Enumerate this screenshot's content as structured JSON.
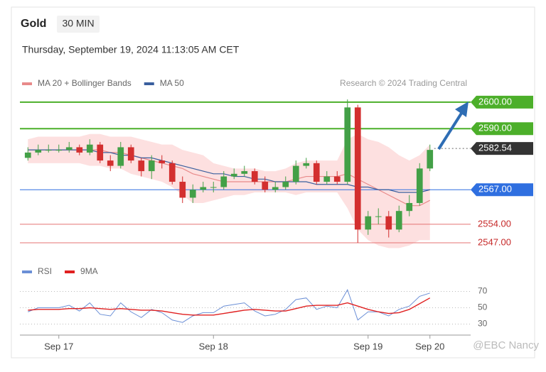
{
  "chart_data": {
    "type": "candlestick",
    "title": "Gold",
    "interval": "30 MIN",
    "subtitle": "Thursday, September 19, 2024 11:13:05 AM CET",
    "source": "Research © 2024 Trading Central",
    "watermark": "@EBC  Nancy",
    "categories": [
      null,
      null,
      null,
      "Sep 17",
      null,
      null,
      null,
      null,
      null,
      null,
      null,
      null,
      null,
      null,
      null,
      null,
      null,
      null,
      "Sep 18",
      null,
      null,
      null,
      null,
      null,
      null,
      null,
      null,
      null,
      null,
      null,
      null,
      null,
      null,
      "Sep 19",
      null,
      null,
      null,
      null,
      null,
      "Sep 20"
    ],
    "open": [
      2579,
      2581,
      2582,
      2582,
      2582,
      2583,
      2581,
      2584,
      2578,
      2576,
      2583,
      2578,
      2574,
      2578,
      2577,
      2570,
      2564,
      2567,
      2568,
      2568,
      2572,
      2573,
      2574,
      2570,
      2567,
      2568,
      2570,
      2576,
      2577,
      2570,
      2572,
      2570,
      2598,
      2552,
      2557,
      2557,
      2552,
      2559,
      2562,
      2575
    ],
    "high": [
      2583,
      2584,
      2584,
      2584,
      2585,
      2584,
      2586,
      2585,
      2580,
      2585,
      2584,
      2579,
      2580,
      2580,
      2578,
      2572,
      2569,
      2570,
      2570,
      2574,
      2575,
      2576,
      2575,
      2572,
      2570,
      2572,
      2578,
      2579,
      2578,
      2574,
      2574,
      2601,
      2599,
      2559,
      2560,
      2559,
      2561,
      2565,
      2577,
      2584
    ],
    "low": [
      2578,
      2580,
      2581,
      2581,
      2581,
      2580,
      2580,
      2577,
      2574,
      2575,
      2577,
      2572,
      2571,
      2575,
      2569,
      2562,
      2562,
      2566,
      2566,
      2567,
      2571,
      2572,
      2569,
      2566,
      2566,
      2567,
      2569,
      2575,
      2569,
      2569,
      2569,
      2569,
      2547,
      2550,
      2554,
      2549,
      2551,
      2557,
      2561,
      2574
    ],
    "close": [
      2581,
      2582,
      2582,
      2582,
      2583,
      2581,
      2584,
      2578,
      2576,
      2583,
      2578,
      2574,
      2578,
      2577,
      2570,
      2564,
      2567,
      2568,
      2568,
      2572,
      2573,
      2574,
      2570,
      2567,
      2568,
      2570,
      2576,
      2577,
      2570,
      2572,
      2570,
      2598,
      2552,
      2557,
      2557,
      2552,
      2559,
      2562,
      2575,
      2582
    ],
    "up_color": "#43a047",
    "down_color": "#d32f2f",
    "series": [
      {
        "name": "MA 20 + Bollinger Bands",
        "color": "#e88a8a",
        "values": [
          2582,
          2582,
          2582,
          2582,
          2582,
          2582,
          2582,
          2582,
          2581,
          2581,
          2580,
          2579,
          2578,
          2577,
          2576,
          2575,
          2573,
          2572,
          2571,
          2570,
          2570,
          2570,
          2570,
          2570,
          2570,
          2570,
          2571,
          2572,
          2572,
          2572,
          2572,
          2573,
          2571,
          2569,
          2567,
          2565,
          2563,
          2561,
          2561,
          2563
        ],
        "upper": [
          2586,
          2587,
          2587,
          2587,
          2587,
          2587,
          2588,
          2588,
          2587,
          2587,
          2587,
          2586,
          2585,
          2584,
          2584,
          2582,
          2581,
          2580,
          2577,
          2576,
          2575,
          2575,
          2575,
          2574,
          2574,
          2575,
          2577,
          2578,
          2578,
          2578,
          2578,
          2586,
          2588,
          2586,
          2585,
          2583,
          2580,
          2578,
          2580,
          2584
        ],
        "lower": [
          2577,
          2577,
          2577,
          2577,
          2577,
          2577,
          2576,
          2576,
          2575,
          2575,
          2573,
          2572,
          2571,
          2570,
          2568,
          2565,
          2562,
          2562,
          2563,
          2564,
          2565,
          2565,
          2566,
          2566,
          2566,
          2566,
          2565,
          2566,
          2566,
          2566,
          2566,
          2560,
          2552,
          2548,
          2546,
          2545,
          2545,
          2546,
          2548,
          2548
        ],
        "band_color": "#fde0e0"
      },
      {
        "name": "MA 50",
        "color": "#3a5f9e",
        "values": [
          2582,
          2582,
          2582,
          2582,
          2582,
          2582,
          2582,
          2581,
          2581,
          2580,
          2580,
          2579,
          2579,
          2578,
          2577,
          2576,
          2575,
          2574,
          2573,
          2573,
          2572,
          2572,
          2571,
          2571,
          2570,
          2570,
          2570,
          2570,
          2569,
          2569,
          2569,
          2569,
          2568,
          2568,
          2567,
          2567,
          2566,
          2566,
          2566,
          2567
        ]
      }
    ],
    "ylim": [
      2542.2,
      2603.7
    ],
    "levels": [
      {
        "price": {
          "value": 2600,
          "label": "2600.00"
        },
        "color": "#4caf2a",
        "style": "box"
      },
      {
        "price": {
          "value": 2590,
          "label": "2590.00"
        },
        "color": "#4caf2a",
        "style": "box"
      },
      {
        "price": {
          "value": 2582.54,
          "label": "2582.54"
        },
        "color": "#333333",
        "style": "dotted"
      },
      {
        "price": {
          "value": 2567,
          "label": "2567.00"
        },
        "color": "#2f6fe0",
        "style": "box"
      },
      {
        "price": {
          "value": 2554,
          "label": "2554.00"
        },
        "color": "#e57373",
        "style": "plain"
      },
      {
        "price": {
          "value": 2547,
          "label": "2547.00"
        },
        "color": "#e57373",
        "style": "plain"
      }
    ],
    "indicator": {
      "series": [
        {
          "name": "RSI",
          "color": "#6b8fd6",
          "values": [
            45,
            50,
            50,
            50,
            53,
            46,
            56,
            42,
            40,
            56,
            45,
            38,
            48,
            44,
            35,
            32,
            40,
            44,
            44,
            52,
            54,
            56,
            46,
            40,
            42,
            48,
            60,
            62,
            48,
            52,
            50,
            72,
            35,
            45,
            45,
            40,
            48,
            52,
            64,
            68
          ]
        },
        {
          "name": "9MA",
          "color": "#e02020",
          "values": [
            47,
            48,
            48,
            48,
            49,
            49,
            50,
            49,
            48,
            49,
            48,
            47,
            47,
            46,
            44,
            42,
            41,
            41,
            41,
            43,
            45,
            47,
            48,
            47,
            46,
            46,
            49,
            52,
            53,
            53,
            53,
            56,
            52,
            48,
            45,
            43,
            44,
            48,
            55,
            62
          ]
        }
      ],
      "ylim": [
        20,
        80
      ],
      "yticks": [
        70,
        50,
        30
      ]
    }
  }
}
